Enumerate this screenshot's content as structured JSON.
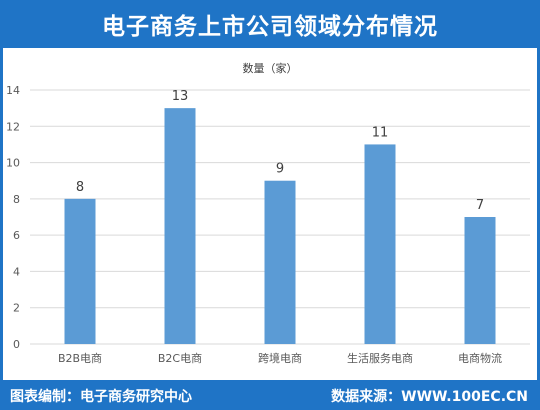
{
  "header": {
    "title": "电子商务上市公司领域分布情况"
  },
  "footer": {
    "left_text": "图表编制：电子商务研究中心",
    "right_text": "数据来源：WWW.100EC.CN"
  },
  "colors": {
    "header_bg": "#1f74c6",
    "bar": "#5b9bd5",
    "grid": "#d9d9d9",
    "axis_text": "#595959"
  },
  "chart_data": {
    "type": "bar",
    "title": "数量（家）",
    "categories": [
      "B2B电商",
      "B2C电商",
      "跨境电商",
      "生活服务电商",
      "电商物流"
    ],
    "values": [
      8,
      13,
      9,
      11,
      7
    ],
    "data_labels": [
      "8",
      "13",
      "9",
      "11",
      "7"
    ],
    "ylim": [
      0,
      14
    ],
    "yticks": [
      0,
      2,
      4,
      6,
      8,
      10,
      12,
      14
    ],
    "grid": true,
    "legend": "none"
  }
}
